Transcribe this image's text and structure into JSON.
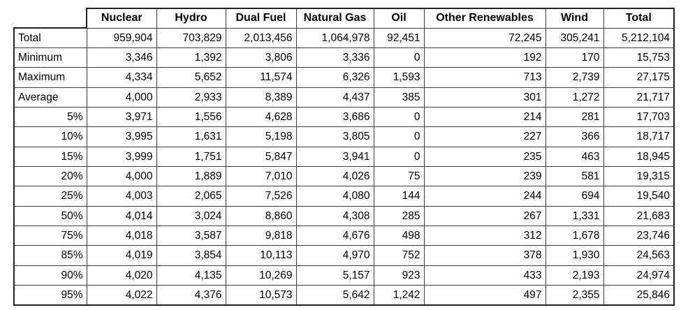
{
  "colors": {
    "background": "#ffffff",
    "border_inner": "#3c3c3c",
    "border_outer": "#1f1f1f",
    "text": "#000000"
  },
  "table": {
    "corner_label": "",
    "columns": [
      "Nuclear",
      "Hydro",
      "Dual Fuel",
      "Natural Gas",
      "Oil",
      "Other Renewables",
      "Wind",
      "Total"
    ],
    "rows": [
      {
        "label": "Total",
        "values": [
          "959,904",
          "703,829",
          "2,013,456",
          "1,064,978",
          "92,451",
          "72,245",
          "305,241",
          "5,212,104"
        ]
      },
      {
        "label": "Minimum",
        "values": [
          "3,346",
          "1,392",
          "3,806",
          "3,336",
          "0",
          "192",
          "170",
          "15,753"
        ]
      },
      {
        "label": "Maximum",
        "values": [
          "4,334",
          "5,652",
          "11,574",
          "6,326",
          "1,593",
          "713",
          "2,739",
          "27,175"
        ]
      },
      {
        "label": "Average",
        "values": [
          "4,000",
          "2,933",
          "8,389",
          "4,437",
          "385",
          "301",
          "1,272",
          "21,717"
        ]
      },
      {
        "label": "5%",
        "values": [
          "3,971",
          "1,556",
          "4,628",
          "3,686",
          "0",
          "214",
          "281",
          "17,703"
        ]
      },
      {
        "label": "10%",
        "values": [
          "3,995",
          "1,631",
          "5,198",
          "3,805",
          "0",
          "227",
          "366",
          "18,717"
        ]
      },
      {
        "label": "15%",
        "values": [
          "3,999",
          "1,751",
          "5,847",
          "3,941",
          "0",
          "235",
          "463",
          "18,945"
        ]
      },
      {
        "label": "20%",
        "values": [
          "4,000",
          "1,889",
          "7,010",
          "4,026",
          "75",
          "239",
          "581",
          "19,315"
        ]
      },
      {
        "label": "25%",
        "values": [
          "4,003",
          "2,065",
          "7,526",
          "4,080",
          "144",
          "244",
          "694",
          "19,540"
        ]
      },
      {
        "label": "50%",
        "values": [
          "4,014",
          "3,024",
          "8,860",
          "4,308",
          "285",
          "267",
          "1,331",
          "21,683"
        ]
      },
      {
        "label": "75%",
        "values": [
          "4,018",
          "3,587",
          "9,818",
          "4,676",
          "498",
          "312",
          "1,678",
          "23,746"
        ]
      },
      {
        "label": "85%",
        "values": [
          "4,019",
          "3,854",
          "10,113",
          "4,970",
          "752",
          "378",
          "1,930",
          "24,563"
        ]
      },
      {
        "label": "90%",
        "values": [
          "4,020",
          "4,135",
          "10,269",
          "5,157",
          "923",
          "433",
          "2,193",
          "24,974"
        ]
      },
      {
        "label": "95%",
        "values": [
          "4,022",
          "4,376",
          "10,573",
          "5,642",
          "1,242",
          "497",
          "2,355",
          "25,846"
        ]
      }
    ]
  },
  "chart_data": {
    "type": "table",
    "columns": [
      "Nuclear",
      "Hydro",
      "Dual Fuel",
      "Natural Gas",
      "Oil",
      "Other Renewables",
      "Wind",
      "Total"
    ],
    "row_labels": [
      "Total",
      "Minimum",
      "Maximum",
      "Average",
      "5%",
      "10%",
      "15%",
      "20%",
      "25%",
      "50%",
      "75%",
      "85%",
      "90%",
      "95%"
    ],
    "rows": [
      [
        959904,
        703829,
        2013456,
        1064978,
        92451,
        72245,
        305241,
        5212104
      ],
      [
        3346,
        1392,
        3806,
        3336,
        0,
        192,
        170,
        15753
      ],
      [
        4334,
        5652,
        11574,
        6326,
        1593,
        713,
        2739,
        27175
      ],
      [
        4000,
        2933,
        8389,
        4437,
        385,
        301,
        1272,
        21717
      ],
      [
        3971,
        1556,
        4628,
        3686,
        0,
        214,
        281,
        17703
      ],
      [
        3995,
        1631,
        5198,
        3805,
        0,
        227,
        366,
        18717
      ],
      [
        3999,
        1751,
        5847,
        3941,
        0,
        235,
        463,
        18945
      ],
      [
        4000,
        1889,
        7010,
        4026,
        75,
        239,
        581,
        19315
      ],
      [
        4003,
        2065,
        7526,
        4080,
        144,
        244,
        694,
        19540
      ],
      [
        4014,
        3024,
        8860,
        4308,
        285,
        267,
        1331,
        21683
      ],
      [
        4018,
        3587,
        9818,
        4676,
        498,
        312,
        1678,
        23746
      ],
      [
        4019,
        3854,
        10113,
        4970,
        752,
        378,
        1930,
        24563
      ],
      [
        4020,
        4135,
        10269,
        5157,
        923,
        433,
        2193,
        24974
      ],
      [
        4022,
        4376,
        10573,
        5642,
        1242,
        497,
        2355,
        25846
      ]
    ]
  }
}
